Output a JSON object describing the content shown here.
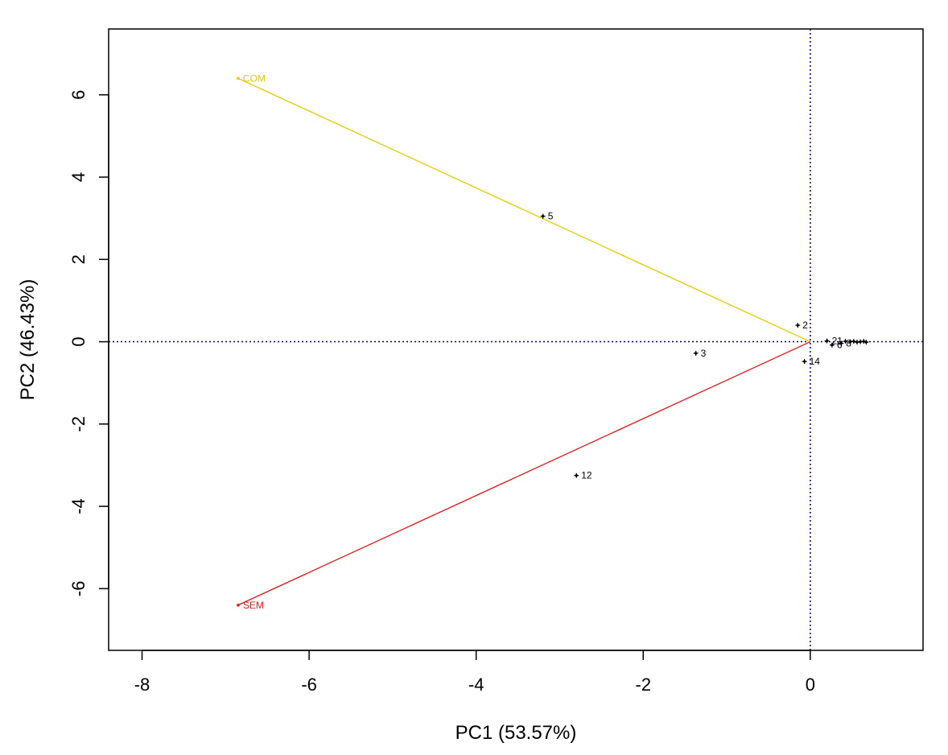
{
  "chart_data": {
    "type": "scatter",
    "title": "",
    "xlabel": "PC1 (53.57%)",
    "ylabel": "PC2 (46.43%)",
    "xlim": [
      -8.4,
      1.35
    ],
    "ylim": [
      -7.5,
      7.6
    ],
    "xticks": [
      -8,
      -6,
      -4,
      -2,
      0
    ],
    "yticks": [
      -6,
      -4,
      -2,
      0,
      2,
      4,
      6
    ],
    "x_tick_labels": [
      "-8",
      "-6",
      "-4",
      "-2",
      "0"
    ],
    "y_tick_labels": [
      "-6",
      "-4",
      "-2",
      "0",
      "2",
      "4",
      "6"
    ],
    "grid": false,
    "reference_lines": {
      "x": 0,
      "y": 0,
      "color": "#00007f",
      "style": "dotted"
    },
    "loadings": [
      {
        "name": "COM",
        "x": -6.85,
        "y": 6.4,
        "color": "#e8c800"
      },
      {
        "name": "SEM",
        "x": -6.85,
        "y": -6.4,
        "color": "#ee1111"
      }
    ],
    "points": [
      {
        "label": "5",
        "x": -3.2,
        "y": 3.05
      },
      {
        "label": "2",
        "x": -0.15,
        "y": 0.4
      },
      {
        "label": "3",
        "x": -1.37,
        "y": -0.28
      },
      {
        "label": "14",
        "x": -0.07,
        "y": -0.48
      },
      {
        "label": "12",
        "x": -2.8,
        "y": -3.25
      },
      {
        "label": "21",
        "x": 0.2,
        "y": 0.02
      },
      {
        "label": "6",
        "x": 0.26,
        "y": -0.08
      },
      {
        "label": "8",
        "x": 0.37,
        "y": -0.04
      },
      {
        "label": "",
        "x": 0.42,
        "y": 0.01
      },
      {
        "label": "",
        "x": 0.48,
        "y": 0.0
      },
      {
        "label": "",
        "x": 0.52,
        "y": 0.01
      },
      {
        "label": "",
        "x": 0.56,
        "y": -0.01
      },
      {
        "label": "",
        "x": 0.6,
        "y": 0.0
      },
      {
        "label": "",
        "x": 0.64,
        "y": 0.01
      },
      {
        "label": "",
        "x": 0.67,
        "y": -0.01
      }
    ],
    "colors": {
      "axis": "#000000",
      "points": "#000000"
    }
  }
}
